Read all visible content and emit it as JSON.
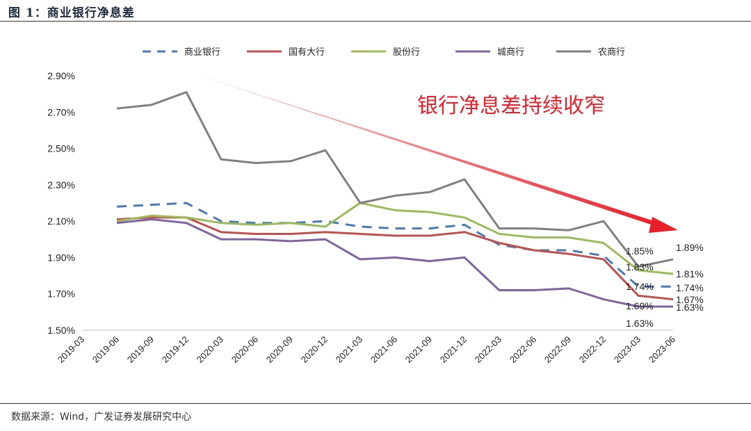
{
  "header": {
    "title": "图 1：商业银行净息差"
  },
  "footer": {
    "source": "数据来源：Wind，广发证券发展研究中心"
  },
  "chart_data": {
    "type": "line",
    "title": "",
    "xlabel": "",
    "ylabel": "",
    "ylim": [
      1.5,
      2.9
    ],
    "yticks": [
      "1.50%",
      "1.70%",
      "1.90%",
      "2.10%",
      "2.30%",
      "2.50%",
      "2.70%",
      "2.90%"
    ],
    "categories": [
      "2019-03",
      "2019-06",
      "2019-09",
      "2019-12",
      "2020-03",
      "2020-06",
      "2020-09",
      "2020-12",
      "2021-03",
      "2021-06",
      "2021-09",
      "2021-12",
      "2022-03",
      "2022-06",
      "2022-09",
      "2022-12",
      "2023-03",
      "2023-06"
    ],
    "grid": false,
    "legend_position": "top",
    "series": [
      {
        "name": "商业银行",
        "color": "#4a7ab5",
        "dash": true,
        "values": [
          null,
          2.18,
          2.19,
          2.2,
          2.1,
          2.09,
          2.09,
          2.1,
          2.07,
          2.06,
          2.06,
          2.08,
          1.97,
          1.94,
          1.94,
          1.91,
          1.74,
          1.74
        ]
      },
      {
        "name": "国有大行",
        "color": "#c0504d",
        "dash": false,
        "values": [
          null,
          2.11,
          2.12,
          2.12,
          2.04,
          2.03,
          2.03,
          2.04,
          2.03,
          2.02,
          2.02,
          2.04,
          1.98,
          1.94,
          1.92,
          1.89,
          1.69,
          1.67
        ]
      },
      {
        "name": "股份行",
        "color": "#9bbb59",
        "dash": false,
        "values": [
          null,
          2.1,
          2.13,
          2.12,
          2.09,
          2.08,
          2.09,
          2.07,
          2.2,
          2.16,
          2.15,
          2.12,
          2.03,
          2.01,
          2.01,
          1.98,
          1.83,
          1.81
        ]
      },
      {
        "name": "城商行",
        "color": "#8064a2",
        "dash": false,
        "values": [
          null,
          2.09,
          2.11,
          2.09,
          2.0,
          2.0,
          1.99,
          2.0,
          1.89,
          1.9,
          1.88,
          1.9,
          1.72,
          1.72,
          1.73,
          1.67,
          1.63,
          1.63
        ]
      },
      {
        "name": "农商行",
        "color": "#7f7f7f",
        "dash": false,
        "values": [
          null,
          2.72,
          2.74,
          2.81,
          2.44,
          2.42,
          2.43,
          2.49,
          2.2,
          2.24,
          2.26,
          2.33,
          2.06,
          2.06,
          2.05,
          2.1,
          1.85,
          1.89
        ]
      }
    ],
    "data_labels": {
      "2023-03": [
        "1.85%",
        "1.83%",
        "1.74%",
        "1.69%",
        "1.63%"
      ],
      "2023-06": [
        "1.89%",
        "1.81%",
        "1.74%",
        "1.67%",
        "1.63%"
      ]
    },
    "annotation": {
      "text": "银行净息差持续收窄",
      "color": "#e8202a"
    }
  }
}
